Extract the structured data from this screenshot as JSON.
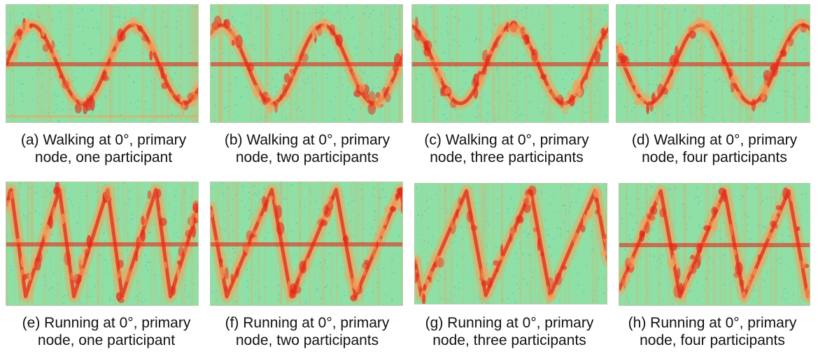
{
  "figure": {
    "colors": {
      "background": "#8fe0a6",
      "hot": "#e3281b",
      "warm": "#f0a35c",
      "speckle": "#3fc9c4"
    },
    "panels": [
      {
        "id": "a",
        "caption_line1": "(a) Walking at 0°, primary",
        "caption_line2": "node, one participant",
        "activity": "walking",
        "participants": 1
      },
      {
        "id": "b",
        "caption_line1": "(b) Walking at 0°, primary",
        "caption_line2": "node, two participants",
        "activity": "walking",
        "participants": 2
      },
      {
        "id": "c",
        "caption_line1": "(c) Walking at 0°, primary",
        "caption_line2": "node, three participants",
        "activity": "walking",
        "participants": 3
      },
      {
        "id": "d",
        "caption_line1": "(d) Walking at 0°, primary",
        "caption_line2": "node, four participants",
        "activity": "walking",
        "participants": 4
      },
      {
        "id": "e",
        "caption_line1": "(e) Running at 0°, primary",
        "caption_line2": "node, one participant",
        "activity": "running",
        "participants": 1
      },
      {
        "id": "f",
        "caption_line1": "(f) Running at 0°, primary",
        "caption_line2": "node, two participants",
        "activity": "running",
        "participants": 2
      },
      {
        "id": "g",
        "caption_line1": "(g) Running at 0°, primary",
        "caption_line2": "node, three participants",
        "activity": "running",
        "participants": 3
      },
      {
        "id": "h",
        "caption_line1": "(h) Running at 0°, primary",
        "caption_line2": "node, four participants",
        "activity": "running",
        "participants": 4
      }
    ]
  }
}
